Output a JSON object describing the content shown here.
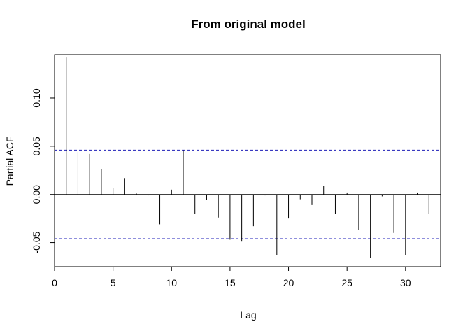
{
  "chart_data": {
    "type": "bar",
    "title": "From original model",
    "xlabel": "Lag",
    "ylabel": "Partial ACF",
    "xlim": [
      0,
      33
    ],
    "ylim": [
      -0.075,
      0.145
    ],
    "x_ticks": [
      0,
      5,
      10,
      15,
      20,
      25,
      30
    ],
    "y_ticks": [
      -0.05,
      0.0,
      0.05,
      0.1
    ],
    "y_tick_labels": [
      "-0.05",
      "0.00",
      "0.05",
      "0.10"
    ],
    "confidence_bound": 0.046,
    "bound_color": "#1f1fb8",
    "lags": [
      1,
      2,
      3,
      4,
      5,
      6,
      7,
      8,
      9,
      10,
      11,
      12,
      13,
      14,
      15,
      16,
      17,
      18,
      19,
      20,
      21,
      22,
      23,
      24,
      25,
      26,
      27,
      28,
      29,
      30,
      31,
      32
    ],
    "values": [
      0.142,
      0.044,
      0.042,
      0.026,
      0.007,
      0.017,
      0.001,
      -0.001,
      -0.031,
      0.005,
      0.046,
      -0.02,
      -0.006,
      -0.024,
      -0.047,
      -0.049,
      -0.033,
      -0.001,
      -0.063,
      -0.025,
      -0.005,
      -0.011,
      0.009,
      -0.02,
      0.002,
      -0.037,
      -0.066,
      -0.002,
      -0.04,
      -0.063,
      0.002,
      -0.02
    ],
    "grid": false,
    "legend": "none"
  }
}
